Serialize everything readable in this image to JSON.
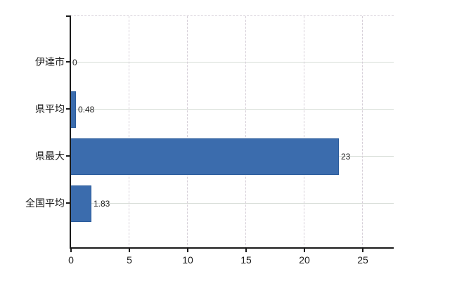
{
  "chart_data": {
    "type": "bar",
    "orientation": "horizontal",
    "title": "",
    "xlabel": "",
    "ylabel": "",
    "legend": "none",
    "categories": [
      "伊達市",
      "県平均",
      "県最大",
      "全国平均"
    ],
    "values": [
      0,
      0.48,
      23,
      1.83
    ],
    "value_labels": [
      "0",
      "0.48",
      "23",
      "1.83"
    ],
    "x_ticks": [
      "0",
      "5",
      "10",
      "15",
      "20",
      "25"
    ],
    "xlim": [
      0,
      27.7
    ],
    "grid": {
      "horizontal": "solid",
      "vertical": "dashed",
      "plot_top_border": "dashed"
    },
    "colors": {
      "bar_fill": "#3b6cad",
      "bar_border": "#2b5c9c",
      "axis": "#1a1a1a",
      "grid_solid": "#d8ded8",
      "grid_dashed": "#d6cfd8",
      "value_text": "#222222",
      "label_text": "#1a1a1a",
      "background": "#ffffff"
    }
  }
}
